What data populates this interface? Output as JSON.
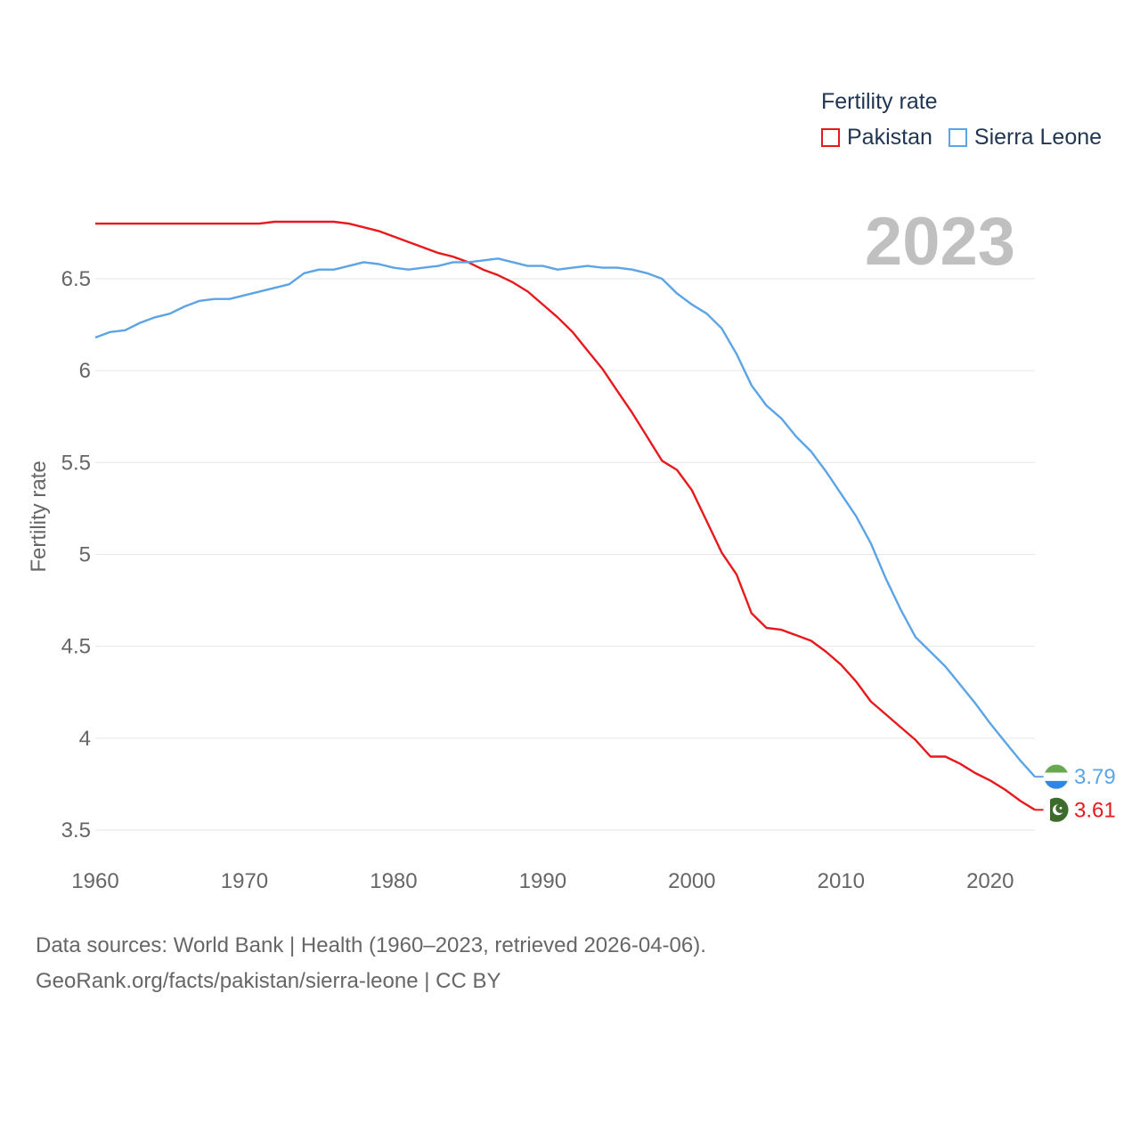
{
  "legend": {
    "title": "Fertility rate",
    "items": [
      {
        "label": "Pakistan",
        "color": "#e8191c"
      },
      {
        "label": "Sierra Leone",
        "color": "#5ba4e5"
      }
    ]
  },
  "year_label": "2023",
  "source": {
    "line1": "Data sources: World Bank | Health (1960–2023, retrieved 2026-04-06).",
    "line2": "GeoRank.org/facts/pakistan/sierra-leone | CC BY"
  },
  "chart_data": {
    "type": "line",
    "title": "Fertility rate",
    "xlabel": "",
    "ylabel": "Fertility rate",
    "xlim": [
      1960,
      2023
    ],
    "ylim": [
      3.5,
      6.8
    ],
    "grid": true,
    "legend_position": "top-right",
    "x_ticks": [
      "1960",
      "1970",
      "1980",
      "1990",
      "2000",
      "2010",
      "2020"
    ],
    "y_ticks": [
      "3.5",
      "4",
      "4.5",
      "5",
      "5.5",
      "6",
      "6.5"
    ],
    "x": [
      1960,
      1961,
      1962,
      1963,
      1964,
      1965,
      1966,
      1967,
      1968,
      1969,
      1970,
      1971,
      1972,
      1973,
      1974,
      1975,
      1976,
      1977,
      1978,
      1979,
      1980,
      1981,
      1982,
      1983,
      1984,
      1985,
      1986,
      1987,
      1988,
      1989,
      1990,
      1991,
      1992,
      1993,
      1994,
      1995,
      1996,
      1997,
      1998,
      1999,
      2000,
      2001,
      2002,
      2003,
      2004,
      2005,
      2006,
      2007,
      2008,
      2009,
      2010,
      2011,
      2012,
      2013,
      2014,
      2015,
      2016,
      2017,
      2018,
      2019,
      2020,
      2021,
      2022,
      2023
    ],
    "series": [
      {
        "name": "Pakistan",
        "color": "#e8191c",
        "end_label": "3.61",
        "values": [
          6.8,
          6.8,
          6.8,
          6.8,
          6.8,
          6.8,
          6.8,
          6.8,
          6.8,
          6.8,
          6.8,
          6.8,
          6.81,
          6.81,
          6.81,
          6.81,
          6.81,
          6.8,
          6.78,
          6.76,
          6.73,
          6.7,
          6.67,
          6.64,
          6.62,
          6.59,
          6.55,
          6.52,
          6.48,
          6.43,
          6.36,
          6.29,
          6.21,
          6.11,
          6.01,
          5.89,
          5.77,
          5.64,
          5.51,
          5.46,
          5.35,
          5.18,
          5.01,
          4.89,
          4.68,
          4.6,
          4.59,
          4.56,
          4.53,
          4.47,
          4.4,
          4.31,
          4.2,
          4.13,
          4.06,
          3.99,
          3.9,
          3.9,
          3.86,
          3.81,
          3.77,
          3.72,
          3.66,
          3.61
        ]
      },
      {
        "name": "Sierra Leone",
        "color": "#5ba4e5",
        "end_label": "3.79",
        "values": [
          6.18,
          6.21,
          6.22,
          6.26,
          6.29,
          6.31,
          6.35,
          6.38,
          6.39,
          6.39,
          6.41,
          6.43,
          6.45,
          6.47,
          6.53,
          6.55,
          6.55,
          6.57,
          6.59,
          6.58,
          6.56,
          6.55,
          6.56,
          6.57,
          6.59,
          6.59,
          6.6,
          6.61,
          6.59,
          6.57,
          6.57,
          6.55,
          6.56,
          6.57,
          6.56,
          6.56,
          6.55,
          6.53,
          6.5,
          6.42,
          6.36,
          6.31,
          6.23,
          6.09,
          5.92,
          5.81,
          5.74,
          5.64,
          5.56,
          5.45,
          5.33,
          5.21,
          5.06,
          4.87,
          4.7,
          4.55,
          4.47,
          4.39,
          4.29,
          4.19,
          4.08,
          3.98,
          3.88,
          3.79
        ]
      }
    ]
  }
}
